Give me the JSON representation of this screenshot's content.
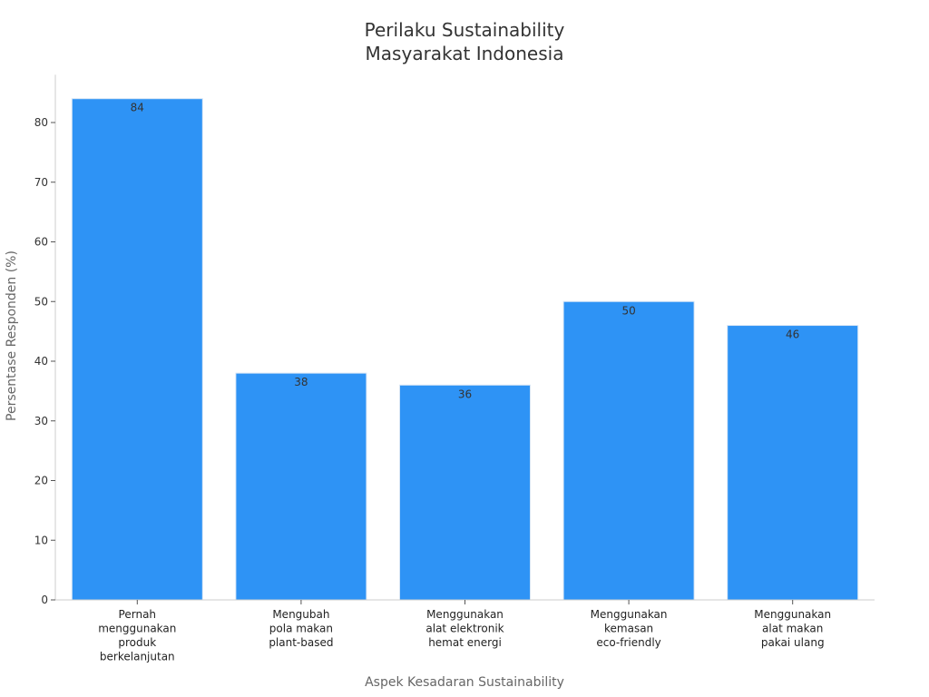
{
  "chart_data": {
    "type": "bar",
    "title": [
      "Perilaku Sustainability",
      "Masyarakat Indonesia"
    ],
    "xlabel": "Aspek Kesadaran Sustainability",
    "ylabel": "Persentase Responden (%)",
    "categories": [
      [
        "Pernah",
        "menggunakan",
        "produk",
        "berkelanjutan"
      ],
      [
        "Mengubah",
        "pola makan",
        "plant-based"
      ],
      [
        "Menggunakan",
        "alat elektronik",
        "hemat energi"
      ],
      [
        "Menggunakan",
        "kemasan",
        "eco-friendly"
      ],
      [
        "Menggunakan",
        "alat makan",
        "pakai ulang"
      ]
    ],
    "values": [
      84,
      38,
      36,
      50,
      46
    ],
    "data_labels": [
      "84",
      "38",
      "36",
      "50",
      "46"
    ],
    "ylim": [
      0,
      88
    ],
    "yticks": [
      0,
      10,
      20,
      30,
      40,
      50,
      60,
      70,
      80
    ],
    "bar_color": "#2e93f5",
    "grid": false,
    "legend": "none"
  }
}
